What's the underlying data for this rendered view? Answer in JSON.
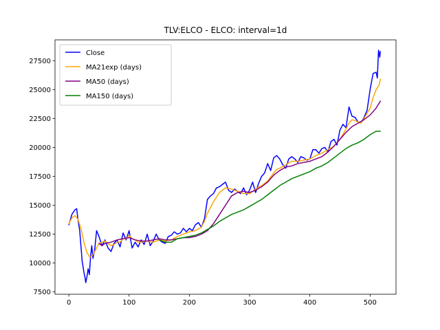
{
  "chart_data": {
    "type": "line",
    "title": "TLV:ELCO - ELCO: interval=1d",
    "xlabel": "",
    "ylabel": "",
    "xlim": [
      -23,
      543
    ],
    "ylim": [
      7300,
      29300
    ],
    "x_ticks": [
      0,
      100,
      200,
      300,
      400,
      500
    ],
    "y_ticks": [
      7500,
      10000,
      12500,
      15000,
      17500,
      20000,
      22500,
      25000,
      27500
    ],
    "x_tick_labels": [
      "0",
      "100",
      "200",
      "300",
      "400",
      "500"
    ],
    "y_tick_labels": [
      "7500",
      "10000",
      "12500",
      "15000",
      "17500",
      "20000",
      "22500",
      "25000",
      "27500"
    ],
    "grid": false,
    "legend_position": "top-left",
    "series": [
      {
        "name": "Close",
        "color": "#0000ff",
        "x": [
          0,
          5,
          10,
          13,
          15,
          18,
          20,
          22,
          25,
          27,
          28,
          30,
          32,
          34,
          36,
          38,
          40,
          43,
          46,
          50,
          55,
          60,
          65,
          70,
          75,
          80,
          85,
          90,
          95,
          100,
          105,
          110,
          115,
          120,
          125,
          130,
          135,
          140,
          145,
          150,
          155,
          160,
          165,
          170,
          175,
          180,
          185,
          190,
          195,
          200,
          205,
          210,
          215,
          220,
          225,
          230,
          235,
          240,
          245,
          250,
          255,
          260,
          265,
          270,
          275,
          280,
          285,
          290,
          295,
          300,
          305,
          310,
          315,
          320,
          325,
          330,
          335,
          340,
          345,
          350,
          355,
          360,
          365,
          370,
          375,
          380,
          385,
          390,
          395,
          400,
          405,
          410,
          415,
          420,
          425,
          430,
          435,
          440,
          445,
          450,
          455,
          460,
          465,
          470,
          475,
          480,
          485,
          490,
          495,
          500,
          505,
          510,
          512,
          514,
          516,
          517
        ],
        "values": [
          13300,
          14200,
          14600,
          14700,
          13800,
          12800,
          11500,
          10200,
          9200,
          8700,
          8300,
          8800,
          9500,
          9000,
          10500,
          11500,
          10400,
          11200,
          12800,
          12300,
          11500,
          12000,
          11300,
          11000,
          11700,
          12000,
          11400,
          12600,
          12000,
          12800,
          11300,
          11800,
          11400,
          12000,
          11600,
          12500,
          11500,
          11900,
          12500,
          12000,
          11800,
          11700,
          12300,
          12400,
          12700,
          12500,
          12600,
          13000,
          12700,
          13000,
          12800,
          13300,
          13500,
          13100,
          13800,
          15500,
          15800,
          16000,
          16500,
          16600,
          16800,
          17000,
          16300,
          16100,
          16400,
          16200,
          16000,
          16500,
          15900,
          16300,
          17000,
          16100,
          16900,
          17500,
          17800,
          18600,
          18000,
          19100,
          19300,
          19000,
          18500,
          18200,
          19000,
          19200,
          19000,
          18700,
          19200,
          19100,
          18900,
          19000,
          19800,
          19800,
          19500,
          19900,
          20000,
          19600,
          20500,
          20700,
          20200,
          21500,
          22000,
          21700,
          23500,
          22700,
          22600,
          22200,
          22100,
          22600,
          23200,
          25000,
          26400,
          26500,
          26000,
          28400,
          27800,
          28300
        ]
      },
      {
        "name": "MA21exp (days)",
        "color": "#ffa500",
        "x": [
          0,
          5,
          10,
          15,
          20,
          25,
          30,
          35,
          40,
          45,
          50,
          55,
          60,
          65,
          70,
          75,
          80,
          85,
          90,
          95,
          100,
          105,
          110,
          115,
          120,
          130,
          140,
          150,
          160,
          170,
          180,
          190,
          200,
          210,
          220,
          225,
          230,
          235,
          240,
          245,
          250,
          255,
          260,
          270,
          280,
          290,
          300,
          310,
          320,
          330,
          340,
          345,
          350,
          360,
          370,
          380,
          390,
          400,
          410,
          420,
          430,
          440,
          450,
          460,
          465,
          470,
          475,
          480,
          485,
          490,
          500,
          505,
          510,
          515,
          517
        ],
        "values": [
          13400,
          13900,
          14100,
          13800,
          13000,
          11800,
          10900,
          10500,
          10700,
          11200,
          11700,
          11800,
          11900,
          11700,
          11500,
          11600,
          11800,
          11800,
          12100,
          12100,
          12400,
          12100,
          12000,
          11800,
          11800,
          11900,
          11800,
          12000,
          11900,
          12000,
          12300,
          12500,
          12700,
          12800,
          13100,
          13600,
          14300,
          14800,
          15300,
          15700,
          16100,
          16300,
          16500,
          16400,
          16200,
          16000,
          16000,
          16400,
          16700,
          17100,
          17800,
          18100,
          18200,
          18500,
          18800,
          18800,
          18900,
          19000,
          19300,
          19500,
          19800,
          20100,
          20700,
          21600,
          22100,
          22400,
          22300,
          22200,
          22100,
          22500,
          23400,
          24300,
          25000,
          25400,
          25900
        ]
      },
      {
        "name": "MA50 (days)",
        "color": "#800080",
        "x": [
          50,
          55,
          60,
          70,
          80,
          90,
          100,
          110,
          120,
          130,
          140,
          150,
          160,
          170,
          180,
          190,
          200,
          210,
          220,
          230,
          240,
          250,
          260,
          270,
          280,
          290,
          300,
          310,
          320,
          330,
          340,
          350,
          360,
          370,
          380,
          390,
          400,
          410,
          420,
          430,
          440,
          450,
          460,
          470,
          480,
          490,
          500,
          510,
          517
        ],
        "values": [
          11700,
          11500,
          11700,
          11800,
          12000,
          12100,
          12200,
          12000,
          11900,
          11900,
          12000,
          12100,
          12000,
          12000,
          12100,
          12200,
          12200,
          12300,
          12500,
          12800,
          13400,
          14200,
          15000,
          15800,
          16100,
          16200,
          16100,
          16300,
          16600,
          17000,
          17600,
          18000,
          18300,
          18400,
          18600,
          18700,
          18800,
          19000,
          19200,
          19600,
          20100,
          20700,
          21300,
          21800,
          22100,
          22400,
          22800,
          23400,
          24000
        ]
      },
      {
        "name": "MA150 (days)",
        "color": "#008000",
        "x": [
          150,
          160,
          170,
          180,
          190,
          200,
          210,
          220,
          230,
          240,
          250,
          260,
          270,
          280,
          290,
          300,
          310,
          320,
          330,
          340,
          350,
          360,
          370,
          380,
          390,
          400,
          410,
          420,
          430,
          440,
          450,
          460,
          470,
          480,
          490,
          500,
          510,
          517
        ],
        "values": [
          12000,
          11800,
          11800,
          12100,
          12200,
          12300,
          12400,
          12600,
          12900,
          13200,
          13600,
          13900,
          14200,
          14400,
          14600,
          14900,
          15200,
          15500,
          15900,
          16300,
          16700,
          17000,
          17300,
          17500,
          17700,
          17900,
          18200,
          18400,
          18700,
          19100,
          19500,
          19900,
          20200,
          20400,
          20700,
          21100,
          21400,
          21400
        ]
      }
    ]
  }
}
